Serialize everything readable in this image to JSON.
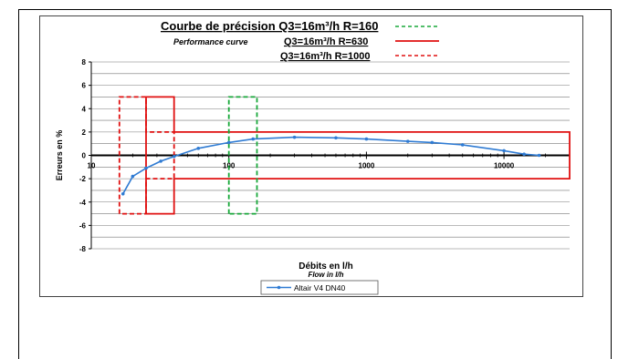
{
  "chart_data": {
    "type": "line",
    "title": "Courbe de précision Q3=16m³/h R=160",
    "subtitle": "Performance curve",
    "legend_top": [
      {
        "label": "Courbe de précision Q3=16m³/h R=160",
        "color": "#18a83a",
        "dash": "dashed"
      },
      {
        "label": "Q3=16m³/h R=630",
        "color": "#e01010",
        "dash": "solid"
      },
      {
        "label": "Q3=16m³/h R=1000",
        "color": "#e01010",
        "dash": "dashed"
      }
    ],
    "xlabel": "Débits en l/h",
    "xlabel_en": "Flow in l/h",
    "ylabel": "Erreurs en %",
    "xscale": "log",
    "xlim": [
      10,
      30000
    ],
    "ylim": [
      -8,
      8
    ],
    "xticks": [
      "10",
      "100",
      "1000",
      "10000"
    ],
    "yticks": [
      "8",
      "6",
      "4",
      "2",
      "0",
      "-2",
      "-4",
      "-6",
      "-8"
    ],
    "grid": true,
    "series": [
      {
        "name": "Altair V4 DN40",
        "color": "#2f7bd3",
        "x": [
          17,
          20,
          25,
          32,
          40,
          60,
          100,
          150,
          300,
          600,
          1000,
          2000,
          3000,
          5000,
          10000,
          14000,
          18000
        ],
        "y": [
          -3.3,
          -1.8,
          -1.1,
          -0.5,
          -0.1,
          0.6,
          1.1,
          1.4,
          1.55,
          1.5,
          1.4,
          1.2,
          1.1,
          0.9,
          0.4,
          0.1,
          0.0
        ]
      }
    ],
    "envelopes": [
      {
        "name": "R=630",
        "color": "#e01010",
        "dash": "solid",
        "x": [
          25,
          25,
          40,
          40,
          30000,
          30000,
          40,
          40,
          25,
          25
        ],
        "y": [
          -5,
          5,
          5,
          2,
          2,
          -2,
          -2,
          -5,
          -5,
          -5
        ]
      },
      {
        "name": "R=1000",
        "color": "#e01010",
        "dash": "dashed",
        "x": [
          16,
          16,
          25,
          25,
          40,
          40,
          25,
          25,
          16
        ],
        "y": [
          -5,
          5,
          5,
          2,
          2,
          -2,
          -2,
          -5,
          -5
        ]
      },
      {
        "name": "R=160",
        "color": "#18a83a",
        "dash": "dashed",
        "x": [
          100,
          100,
          160,
          160,
          100
        ],
        "y": [
          -5,
          5,
          5,
          -5,
          -5
        ]
      }
    ],
    "legend": "bottom"
  }
}
